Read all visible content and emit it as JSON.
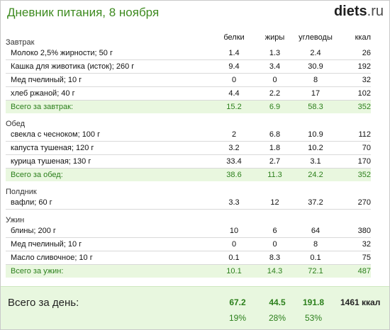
{
  "header": {
    "title": "Дневник питания, 8 ноября",
    "logo_main": "diets",
    "logo_tld": ".ru"
  },
  "columns": {
    "protein": "белки",
    "fat": "жиры",
    "carbs": "углеводы",
    "kcal": "ккал"
  },
  "meals": [
    {
      "title": "Завтрак",
      "items": [
        {
          "name": "Молоко 2,5% жирности; 50 г",
          "protein": "1.4",
          "fat": "1.3",
          "carbs": "2.4",
          "kcal": "26"
        },
        {
          "name": "Кашка для животика (исток); 260 г",
          "protein": "9.4",
          "fat": "3.4",
          "carbs": "30.9",
          "kcal": "192"
        },
        {
          "name": "Мед пчелиный; 10 г",
          "protein": "0",
          "fat": "0",
          "carbs": "8",
          "kcal": "32"
        },
        {
          "name": "хлеб ржаной; 40 г",
          "protein": "4.4",
          "fat": "2.2",
          "carbs": "17",
          "kcal": "102"
        }
      ],
      "total": {
        "label": "Всего за завтрак:",
        "protein": "15.2",
        "fat": "6.9",
        "carbs": "58.3",
        "kcal": "352"
      }
    },
    {
      "title": "Обед",
      "items": [
        {
          "name": "свекла с чесноком; 100 г",
          "protein": "2",
          "fat": "6.8",
          "carbs": "10.9",
          "kcal": "112"
        },
        {
          "name": "капуста тушеная; 120 г",
          "protein": "3.2",
          "fat": "1.8",
          "carbs": "10.2",
          "kcal": "70"
        },
        {
          "name": "курица тушеная; 130 г",
          "protein": "33.4",
          "fat": "2.7",
          "carbs": "3.1",
          "kcal": "170"
        }
      ],
      "total": {
        "label": "Всего за обед:",
        "protein": "38.6",
        "fat": "11.3",
        "carbs": "24.2",
        "kcal": "352"
      }
    },
    {
      "title": "Полдник",
      "items": [
        {
          "name": "вафли; 60 г",
          "protein": "3.3",
          "fat": "12",
          "carbs": "37.2",
          "kcal": "270"
        }
      ],
      "total": null
    },
    {
      "title": "Ужин",
      "items": [
        {
          "name": "блины; 200 г",
          "protein": "10",
          "fat": "6",
          "carbs": "64",
          "kcal": "380"
        },
        {
          "name": "Мед пчелиный; 10 г",
          "protein": "0",
          "fat": "0",
          "carbs": "8",
          "kcal": "32"
        },
        {
          "name": "Масло сливочное; 10 г",
          "protein": "0.1",
          "fat": "8.3",
          "carbs": "0.1",
          "kcal": "75"
        }
      ],
      "total": {
        "label": "Всего за ужин:",
        "protein": "10.1",
        "fat": "14.3",
        "carbs": "72.1",
        "kcal": "487"
      }
    }
  ],
  "day_total": {
    "label": "Всего за день:",
    "protein": "67.2",
    "fat": "44.5",
    "carbs": "191.8",
    "kcal": "1461 ккал",
    "protein_pct": "19%",
    "fat_pct": "28%",
    "carbs_pct": "53%"
  },
  "colors": {
    "title_green": "#3d8a1f",
    "total_green": "#2b7f1b",
    "total_row_bg": "#e9f7df",
    "day_bg": "#e8f7df"
  }
}
